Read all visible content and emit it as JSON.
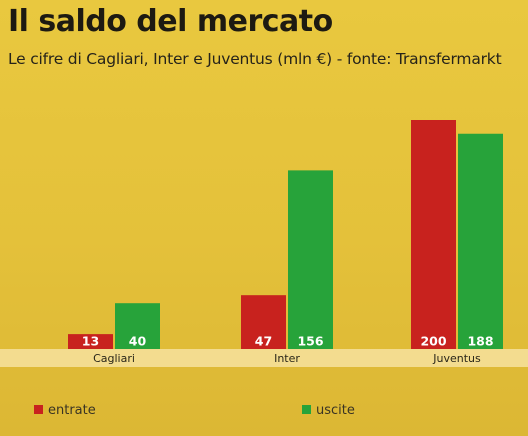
{
  "title": "Il saldo del mercato",
  "subtitle": "Le cifre di Cagliari, Inter e Juventus (mln €) - fonte: Transfermarkt",
  "colors": {
    "entrate": "#c8221e",
    "uscite": "#27a33a",
    "band": "#f3dc8f"
  },
  "chart_data": {
    "type": "bar",
    "categories": [
      "Cagliari",
      "Inter",
      "Juventus"
    ],
    "series": [
      {
        "name": "entrate",
        "values": [
          13,
          47,
          200
        ]
      },
      {
        "name": "uscite",
        "values": [
          40,
          156,
          188
        ]
      }
    ],
    "value_labels": true,
    "legend_position": "bottom-left"
  },
  "legend": [
    "entrate",
    "uscite"
  ]
}
